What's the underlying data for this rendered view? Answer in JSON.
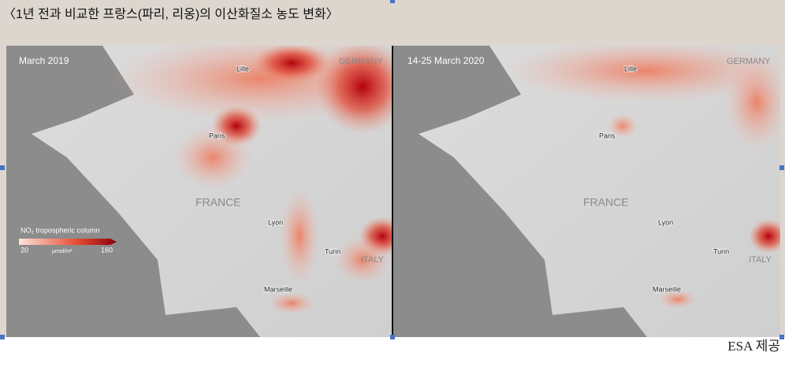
{
  "header": {
    "title": "〈1년 전과 비교한 프랑스(파리, 리옹)의 이산화질소 농도 변화〉"
  },
  "maps": [
    {
      "date": "March 2019",
      "labels": [
        "GERMANY",
        "Lille",
        "Paris",
        "FRANCE",
        "Lyon",
        "Turin",
        "ITALY",
        "Marseille"
      ]
    },
    {
      "date": "14-25 March 2020",
      "labels": [
        "GERMANY",
        "Lille",
        "Paris",
        "FRANCE",
        "Lyon",
        "Turin",
        "ITALY",
        "Marseille"
      ]
    }
  ],
  "legend": {
    "title": "NO₂ tropospheric column",
    "min": 20,
    "unit": "μmol/m²",
    "max": 160
  },
  "caption": "ESA 제공"
}
